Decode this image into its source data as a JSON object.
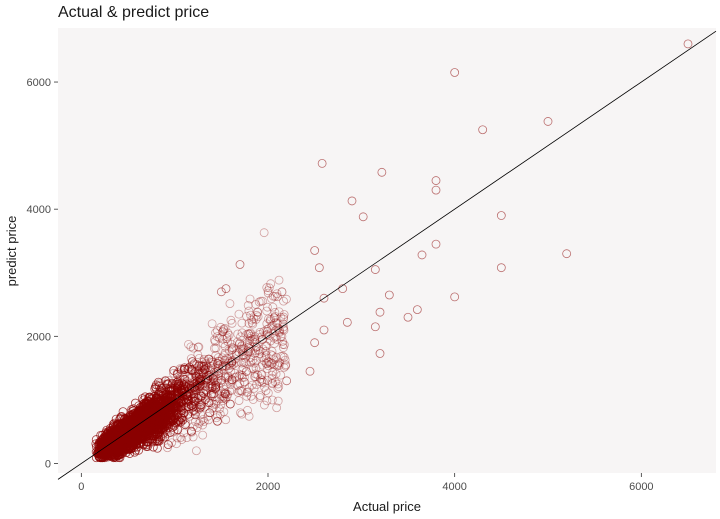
{
  "chart_data": {
    "type": "scatter",
    "title": "Actual & predict price",
    "xlabel": "Actual price",
    "ylabel": "predict price",
    "xlim": [
      -250,
      6800
    ],
    "ylim": [
      -150,
      6850
    ],
    "x_ticks": [
      0,
      2000,
      4000,
      6000
    ],
    "y_ticks": [
      0,
      2000,
      4000,
      6000
    ],
    "grid": false,
    "background": "#f7f5f5",
    "point_color": "#8b0000",
    "point_face": "none",
    "reference_line": {
      "slope": 1,
      "intercept": 0,
      "color": "#000000"
    },
    "dense_cluster": {
      "x_range": [
        100,
        1400
      ],
      "y_range": [
        100,
        1600
      ],
      "shape": "around y = x"
    },
    "outliers": [
      {
        "x": 6500,
        "y": 6600
      },
      {
        "x": 4000,
        "y": 6150
      },
      {
        "x": 4300,
        "y": 5250
      },
      {
        "x": 5000,
        "y": 5380
      },
      {
        "x": 2580,
        "y": 4720
      },
      {
        "x": 3220,
        "y": 4580
      },
      {
        "x": 3800,
        "y": 4450
      },
      {
        "x": 3800,
        "y": 4300
      },
      {
        "x": 2900,
        "y": 4130
      },
      {
        "x": 3020,
        "y": 3880
      },
      {
        "x": 4500,
        "y": 3900
      },
      {
        "x": 3800,
        "y": 3450
      },
      {
        "x": 2500,
        "y": 3350
      },
      {
        "x": 3650,
        "y": 3280
      },
      {
        "x": 5200,
        "y": 3300
      },
      {
        "x": 1700,
        "y": 3130
      },
      {
        "x": 2550,
        "y": 3080
      },
      {
        "x": 3150,
        "y": 3050
      },
      {
        "x": 4500,
        "y": 3080
      },
      {
        "x": 2800,
        "y": 2750
      },
      {
        "x": 2600,
        "y": 2600
      },
      {
        "x": 3300,
        "y": 2650
      },
      {
        "x": 4000,
        "y": 2620
      },
      {
        "x": 3600,
        "y": 2420
      },
      {
        "x": 3500,
        "y": 2300
      },
      {
        "x": 3200,
        "y": 2380
      },
      {
        "x": 2850,
        "y": 2220
      },
      {
        "x": 3150,
        "y": 2150
      },
      {
        "x": 2500,
        "y": 1900
      },
      {
        "x": 3200,
        "y": 1730
      },
      {
        "x": 2200,
        "y": 1300
      },
      {
        "x": 2450,
        "y": 1450
      },
      {
        "x": 2600,
        "y": 2100
      },
      {
        "x": 2150,
        "y": 2700
      },
      {
        "x": 1550,
        "y": 2750
      },
      {
        "x": 1500,
        "y": 2700
      }
    ]
  }
}
